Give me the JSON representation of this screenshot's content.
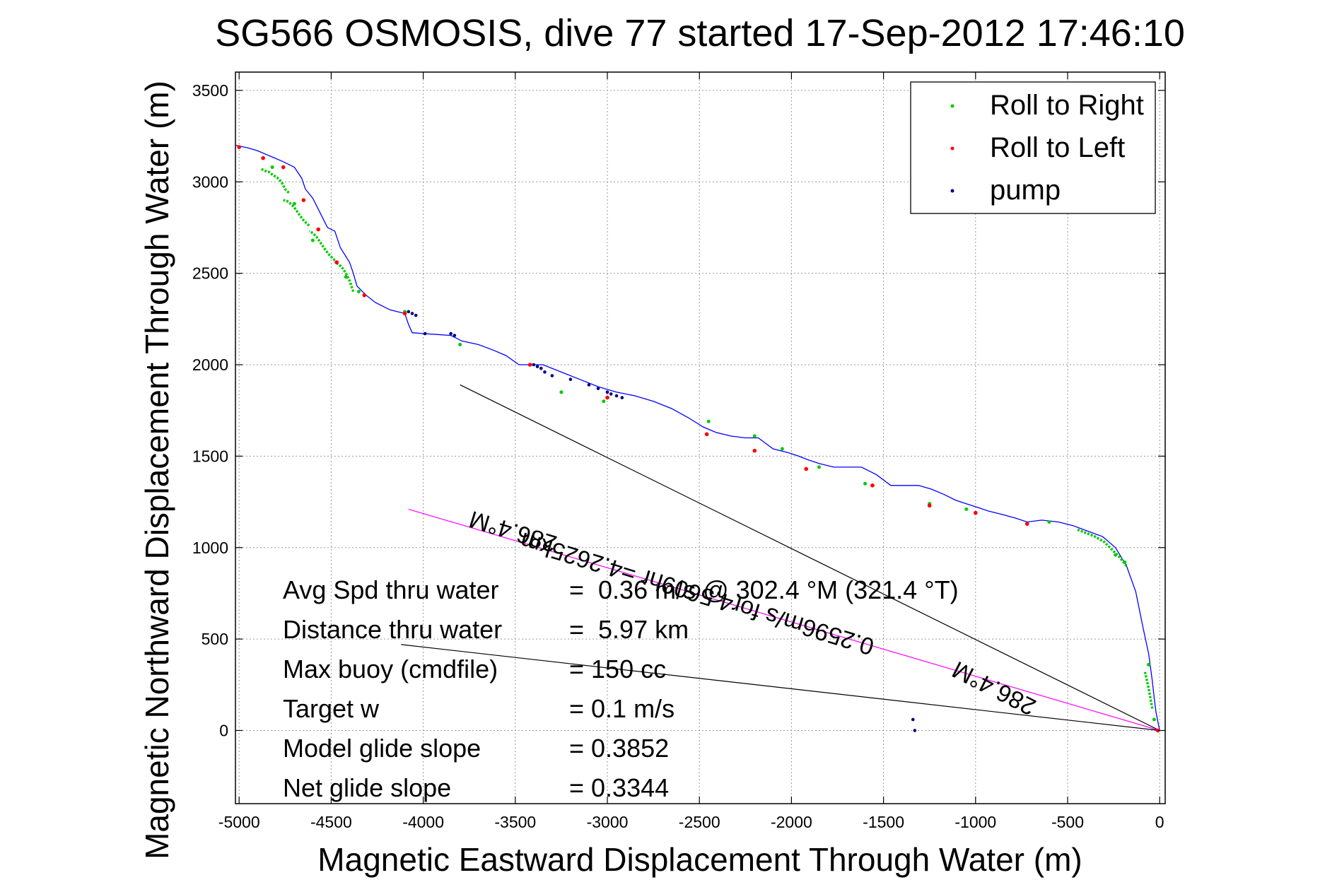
{
  "chart_data": {
    "type": "scatter",
    "title": "SG566 OSMOSIS, dive 77 started 17-Sep-2012 17:46:10",
    "xlabel": "Magnetic Eastward Displacement Through Water (m)",
    "ylabel": "Magnetic Northward Displacement Through Water (m)",
    "xlim": [
      -5020,
      30
    ],
    "ylim": [
      -400,
      3600
    ],
    "xticks": [
      -5000,
      -4500,
      -4000,
      -3500,
      -3000,
      -2500,
      -2000,
      -1500,
      -1000,
      -500,
      0
    ],
    "yticks": [
      0,
      500,
      1000,
      1500,
      2000,
      2500,
      3000,
      3500
    ],
    "grid": true,
    "legend_position": "top-right",
    "legend": [
      {
        "label": "Roll to Right",
        "color": "#00cc00"
      },
      {
        "label": "Roll to Left",
        "color": "#ff0000"
      },
      {
        "label": "pump",
        "color": "#000080"
      }
    ],
    "track": {
      "color": "#0000ff",
      "x": [
        0,
        -10,
        -20,
        -30,
        -40,
        -60,
        -90,
        -130,
        -180,
        -240,
        -310,
        -390,
        -470,
        -550,
        -640,
        -720,
        -780,
        -850,
        -930,
        -990,
        -1050,
        -1110,
        -1170,
        -1240,
        -1310,
        -1380,
        -1460,
        -1540,
        -1620,
        -1700,
        -1770,
        -1850,
        -1910,
        -1960,
        -2020,
        -2100,
        -2180,
        -2250,
        -2330,
        -2410,
        -2480,
        -2560,
        -2650,
        -2750,
        -2850,
        -2950,
        -3050,
        -3150,
        -3250,
        -3350,
        -3400,
        -3480,
        -3550,
        -3620,
        -3700,
        -3790,
        -3850,
        -3920,
        -4000,
        -4060,
        -4080,
        -4100,
        -4180,
        -4260,
        -4310,
        -4360,
        -4380,
        -4400,
        -4450,
        -4480,
        -4520,
        -4560,
        -4600,
        -4640,
        -4660,
        -4700,
        -4740,
        -4760,
        -4830,
        -4900,
        -4950,
        -5020
      ],
      "y": [
        0,
        50,
        100,
        180,
        270,
        420,
        560,
        760,
        900,
        1000,
        1060,
        1090,
        1120,
        1140,
        1150,
        1140,
        1160,
        1180,
        1200,
        1220,
        1240,
        1260,
        1290,
        1320,
        1340,
        1340,
        1340,
        1400,
        1440,
        1440,
        1440,
        1460,
        1480,
        1500,
        1520,
        1540,
        1600,
        1600,
        1610,
        1630,
        1660,
        1710,
        1760,
        1800,
        1830,
        1850,
        1880,
        1920,
        1960,
        2000,
        2000,
        2000,
        2050,
        2080,
        2110,
        2130,
        2160,
        2165,
        2170,
        2175,
        2220,
        2280,
        2300,
        2340,
        2380,
        2430,
        2500,
        2560,
        2640,
        2730,
        2750,
        2830,
        2910,
        2960,
        3020,
        3080,
        3100,
        3110,
        3140,
        3170,
        3185,
        3200
      ]
    },
    "roll_right_segments": [
      {
        "x": [
          -40,
          -60,
          -80
        ],
        "y": [
          120,
          230,
          320
        ]
      },
      {
        "x": [
          -180,
          -220,
          -260,
          -300,
          -350,
          -400,
          -450
        ],
        "y": [
          900,
          950,
          990,
          1030,
          1060,
          1080,
          1100
        ]
      },
      {
        "x": [
          -4380,
          -4400,
          -4420,
          -4440,
          -4460,
          -4480
        ],
        "y": [
          2400,
          2460,
          2500,
          2530,
          2550,
          2560
        ]
      },
      {
        "x": [
          -4480,
          -4510,
          -4540,
          -4560,
          -4580,
          -4600,
          -4620
        ],
        "y": [
          2570,
          2600,
          2640,
          2670,
          2700,
          2720,
          2730
        ]
      },
      {
        "x": [
          -4620,
          -4650,
          -4680,
          -4700,
          -4720,
          -4740,
          -4760
        ],
        "y": [
          2760,
          2790,
          2830,
          2860,
          2880,
          2895,
          2900
        ]
      },
      {
        "x": [
          -4730,
          -4750,
          -4770,
          -4790,
          -4820,
          -4840,
          -4860,
          -4880
        ],
        "y": [
          2940,
          2960,
          3000,
          3020,
          3040,
          3055,
          3060,
          3070
        ]
      }
    ],
    "roll_right_points": {
      "x": [
        -30,
        -60,
        -190,
        -240,
        -600,
        -1050,
        -1250,
        -1600,
        -1850,
        -2050,
        -2200,
        -2450,
        -3020,
        -3250,
        -3420,
        -3800,
        -4100,
        -4350,
        -4420,
        -4600,
        -4700,
        -4820,
        -5000
      ],
      "y": [
        60,
        360,
        920,
        960,
        1140,
        1210,
        1240,
        1350,
        1440,
        1540,
        1610,
        1690,
        1800,
        1850,
        2000,
        2110,
        2290,
        2400,
        2480,
        2680,
        2880,
        3080,
        3190
      ]
    },
    "roll_left_points": {
      "x": [
        -10,
        -720,
        -1000,
        -1250,
        -1560,
        -1920,
        -2200,
        -2460,
        -3000,
        -3420,
        -4100,
        -4320,
        -4470,
        -4570,
        -4650,
        -4760,
        -4870,
        -5000
      ],
      "y": [
        0,
        1130,
        1190,
        1230,
        1340,
        1430,
        1530,
        1620,
        1820,
        2000,
        2280,
        2380,
        2560,
        2740,
        2900,
        3080,
        3130,
        3190
      ]
    },
    "pump_points": {
      "x": [
        -1340,
        -1330,
        -4080,
        -4060,
        -4040,
        -3990,
        -3850,
        -3830,
        -3400,
        -3380,
        -3360,
        -3340,
        -3300,
        -3200,
        -3100,
        -3050,
        -3000,
        -2980,
        -2950,
        -2920
      ],
      "y": [
        60,
        0,
        2290,
        2280,
        2270,
        2170,
        2170,
        2160,
        2000,
        1990,
        1980,
        1960,
        1940,
        1920,
        1890,
        1870,
        1850,
        1840,
        1830,
        1820
      ]
    },
    "reference_lines": [
      {
        "color": "#000000",
        "x": [
          -3800,
          0
        ],
        "y": [
          1890,
          0
        ]
      },
      {
        "color": "#000000",
        "x": [
          -4120,
          0
        ],
        "y": [
          470,
          0
        ]
      },
      {
        "color": "#ff00ff",
        "x": [
          -4080,
          0
        ],
        "y": [
          1210,
          0
        ]
      }
    ],
    "annotations": [
      {
        "text": "286.4°M",
        "x": -3500,
        "y": 1130,
        "rotate": 197
      },
      {
        "text": "0.2596m/s for4.5609hr =4.2625km",
        "x": -2500,
        "y": 790,
        "rotate": 197
      },
      {
        "text": "286.4°M",
        "x": -880,
        "y": 270,
        "rotate": 207
      }
    ],
    "stats": [
      {
        "label": "Avg Spd thru water",
        "value": "=  0.36 m/s @ 302.4 °M (321.4 °T)"
      },
      {
        "label": "Distance thru water",
        "value": "=  5.97 km"
      },
      {
        "label": "Max buoy (cmdfile)",
        "value": "= 150 cc"
      },
      {
        "label": "Target w",
        "value": "= 0.1 m/s"
      },
      {
        "label": "Model glide slope",
        "value": "= 0.3852"
      },
      {
        "label": "Net glide slope",
        "value": "= 0.3344"
      }
    ]
  }
}
